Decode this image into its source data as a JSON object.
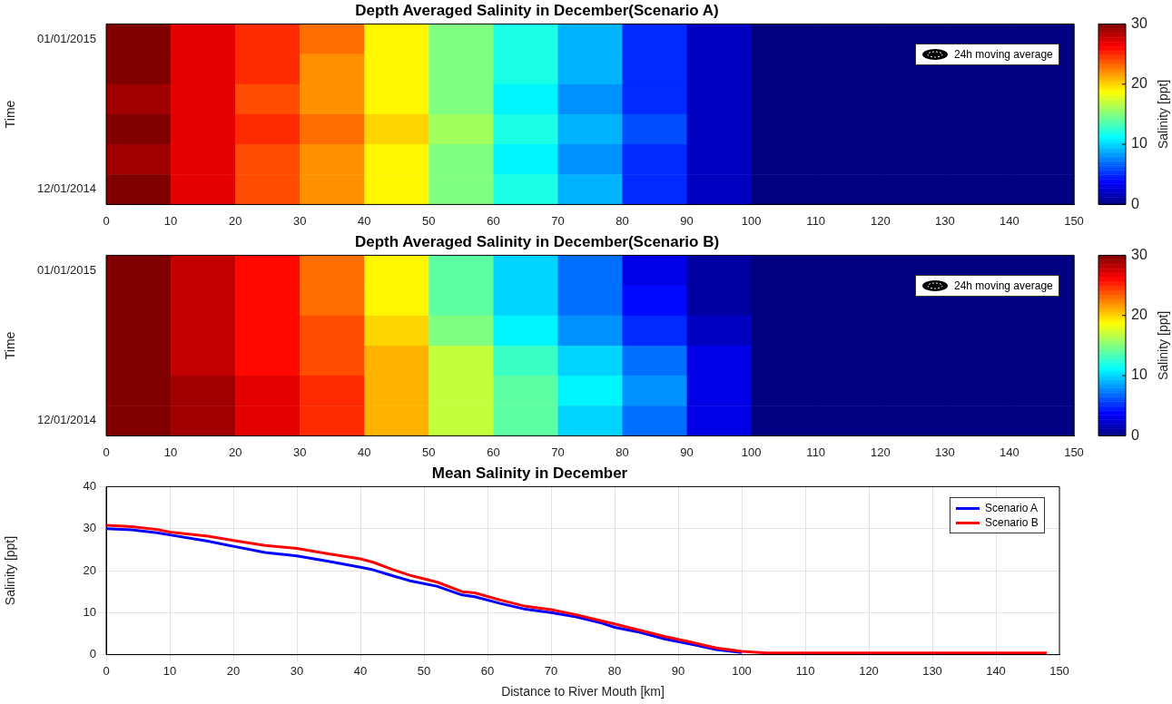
{
  "chart_data": [
    {
      "type": "heatmap",
      "title": "Depth Averaged Salinity in December(Scenario A)",
      "ylabel": "Time",
      "clabel": "Salinity [ppt]",
      "x": [
        5,
        15,
        25,
        35,
        45,
        55,
        65,
        75,
        85,
        95,
        105,
        115,
        125,
        135,
        145
      ],
      "xlim": [
        0,
        150
      ],
      "xticks": [
        0,
        10,
        20,
        30,
        40,
        50,
        60,
        70,
        80,
        90,
        100,
        110,
        120,
        130,
        140,
        150
      ],
      "y_categories": [
        "01/01/2015",
        null,
        null,
        null,
        null,
        "12/01/2014"
      ],
      "cells": [
        [
          30,
          27,
          25,
          23,
          19,
          15,
          12,
          9,
          5,
          2,
          0,
          0,
          0,
          0,
          0
        ],
        [
          30,
          27,
          25,
          22,
          19,
          15,
          12,
          9,
          5,
          2,
          0,
          0,
          0,
          0,
          0
        ],
        [
          29,
          27,
          24,
          22,
          19,
          15,
          11,
          8,
          5,
          2,
          0,
          0,
          0,
          0,
          0
        ],
        [
          30,
          27,
          25,
          23,
          20,
          16,
          12,
          9,
          6,
          2,
          0,
          0,
          0,
          0,
          0
        ],
        [
          29,
          27,
          24,
          22,
          19,
          15,
          11,
          8,
          5,
          2,
          0,
          0,
          0,
          0,
          0
        ],
        [
          30,
          27,
          24,
          22,
          19,
          15,
          12,
          9,
          5,
          2,
          0,
          0,
          0,
          0,
          0
        ]
      ],
      "clim": [
        0,
        30
      ],
      "cticks": [
        0,
        10,
        20,
        30
      ],
      "annotations": [
        "24h moving average"
      ]
    },
    {
      "type": "heatmap",
      "title": "Depth Averaged Salinity in December(Scenario B)",
      "ylabel": "Time",
      "clabel": "Salinity [ppt]",
      "x": [
        5,
        15,
        25,
        35,
        45,
        55,
        65,
        75,
        85,
        95,
        105,
        115,
        125,
        135,
        145
      ],
      "xlim": [
        0,
        150
      ],
      "xticks": [
        0,
        10,
        20,
        30,
        40,
        50,
        60,
        70,
        80,
        90,
        100,
        110,
        120,
        130,
        140,
        150
      ],
      "y_categories": [
        "01/01/2015",
        null,
        null,
        null,
        null,
        "12/01/2014"
      ],
      "cells": [
        [
          30,
          28,
          26,
          23,
          19,
          14,
          10,
          7,
          3,
          1,
          0,
          0,
          0,
          0,
          0
        ],
        [
          30,
          28,
          26,
          23,
          19,
          14,
          10,
          7,
          4,
          1,
          0,
          0,
          0,
          0,
          0
        ],
        [
          30,
          28,
          26,
          24,
          20,
          15,
          11,
          8,
          5,
          2,
          0,
          0,
          0,
          0,
          0
        ],
        [
          30,
          28,
          26,
          24,
          21,
          17,
          13,
          10,
          7,
          3,
          0,
          0,
          0,
          0,
          0
        ],
        [
          30,
          29,
          27,
          25,
          21,
          17,
          14,
          11,
          8,
          3,
          0,
          0,
          0,
          0,
          0
        ],
        [
          30,
          29,
          27,
          25,
          21,
          17,
          14,
          10,
          7,
          3,
          0,
          0,
          0,
          0,
          0
        ]
      ],
      "clim": [
        0,
        30
      ],
      "cticks": [
        0,
        10,
        20,
        30
      ],
      "annotations": [
        "24h moving average"
      ]
    },
    {
      "type": "line",
      "title": "Mean Salinity in December",
      "xlabel": "Distance to River Mouth [km]",
      "ylabel": "Salinity [ppt]",
      "x": [
        0,
        4,
        8,
        10,
        16,
        20,
        25,
        30,
        35,
        40,
        42,
        45,
        48,
        52,
        56,
        58,
        62,
        66,
        70,
        74,
        78,
        80,
        84,
        88,
        92,
        96,
        100,
        104,
        110,
        120,
        130,
        140,
        148
      ],
      "series": [
        {
          "name": "Scenario A",
          "color": "#0000ff",
          "values": [
            30,
            29.7,
            29,
            28.5,
            27,
            25.8,
            24.3,
            23.5,
            22.2,
            20.8,
            20.2,
            18.8,
            17.5,
            16.3,
            14.2,
            13.8,
            12.2,
            10.8,
            10,
            9,
            7.5,
            6.5,
            5.3,
            3.7,
            2.5,
            1.2,
            0.5,
            null,
            null,
            null,
            null,
            null,
            null
          ]
        },
        {
          "name": "Scenario B",
          "color": "#ff0000",
          "values": [
            30.8,
            30.5,
            29.8,
            29.2,
            28.2,
            27.2,
            26,
            25.3,
            24,
            22.8,
            22,
            20.3,
            18.8,
            17.3,
            15,
            14.7,
            13,
            11.5,
            10.7,
            9.5,
            8,
            7.3,
            5.8,
            4.3,
            3,
            1.6,
            0.8,
            0.4,
            0.4,
            0.4,
            0.4,
            0.4,
            0.4
          ]
        }
      ],
      "xlim": [
        0,
        150
      ],
      "xticks": [
        0,
        10,
        20,
        30,
        40,
        50,
        60,
        70,
        80,
        90,
        100,
        110,
        120,
        130,
        140,
        150
      ],
      "ylim": [
        0,
        40
      ],
      "yticks": [
        0,
        10,
        20,
        30,
        40
      ],
      "grid": true,
      "legend": "top right"
    }
  ]
}
